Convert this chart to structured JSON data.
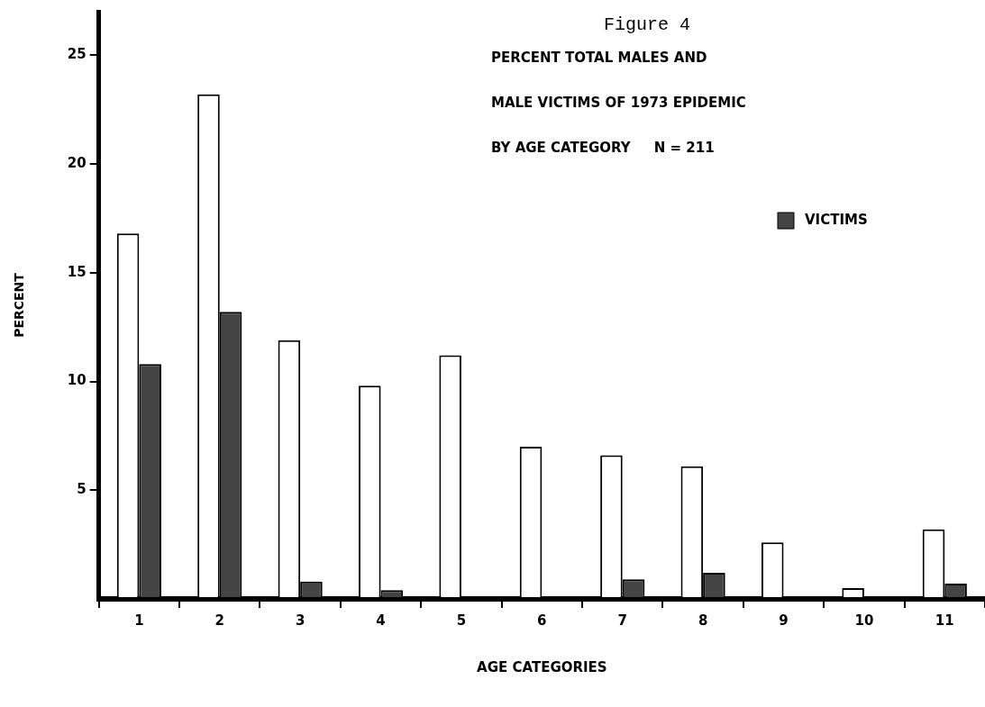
{
  "chart_data": {
    "type": "bar",
    "title": "PERCENT TOTAL MALES AND\nMALE VICTIMS OF 1973 EPIDEMIC\nBY AGE CATEGORY     N = 211",
    "annotations": [
      "Figure 4"
    ],
    "xlabel": "AGE CATEGORIES",
    "ylabel": "PERCENT",
    "categories": [
      "1",
      "2",
      "3",
      "4",
      "5",
      "6",
      "7",
      "8",
      "9",
      "10",
      "11"
    ],
    "series": [
      {
        "color": "#ffffff",
        "values": [
          16.8,
          23.2,
          11.9,
          9.8,
          11.2,
          7.0,
          6.6,
          6.1,
          2.6,
          0.5,
          3.2
        ]
      },
      {
        "name": "VICTIMS",
        "color": "#444444",
        "values": [
          10.8,
          13.2,
          0.8,
          0.4,
          0,
          0,
          0.9,
          1.2,
          0,
          0,
          0.7
        ]
      }
    ],
    "ylim": [
      0,
      27
    ],
    "yticks": [
      5,
      10,
      15,
      20,
      25
    ],
    "grid": false,
    "legend": "top right"
  }
}
